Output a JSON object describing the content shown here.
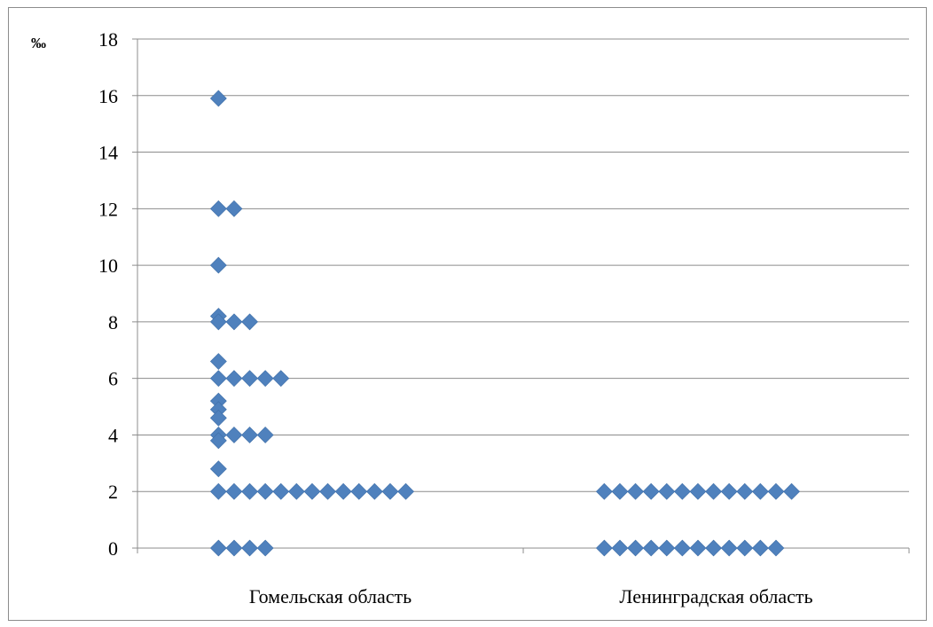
{
  "chart_data": {
    "type": "scatter",
    "ylabel": "‰",
    "ylim": [
      0,
      18
    ],
    "yticks": [
      0,
      2,
      4,
      6,
      8,
      10,
      12,
      14,
      16,
      18
    ],
    "ytick_labels": [
      "0",
      "2",
      "4",
      "6",
      "8",
      "10",
      "12",
      "14",
      "16",
      "18"
    ],
    "grid": true,
    "categories": [
      "Гомельская область",
      "Ленинградская область"
    ],
    "marker": "diamond",
    "color": "#4F81BD",
    "series": [
      {
        "category": "Гомельская область",
        "values": [
          15.9,
          12,
          12,
          10,
          8.2,
          8,
          8,
          8,
          6.6,
          6,
          6,
          6,
          6,
          6,
          5.2,
          4.9,
          4.6,
          4,
          4,
          4,
          4,
          3.8,
          2.8,
          2,
          2,
          2,
          2,
          2,
          2,
          2,
          2,
          2,
          2,
          2,
          2,
          2,
          0,
          0,
          0,
          0
        ]
      },
      {
        "category": "Ленинградская область",
        "values": [
          2,
          2,
          2,
          2,
          2,
          2,
          2,
          2,
          2,
          2,
          2,
          2,
          2,
          0,
          0,
          0,
          0,
          0,
          0,
          0,
          0,
          0,
          0,
          0,
          0
        ]
      }
    ]
  }
}
